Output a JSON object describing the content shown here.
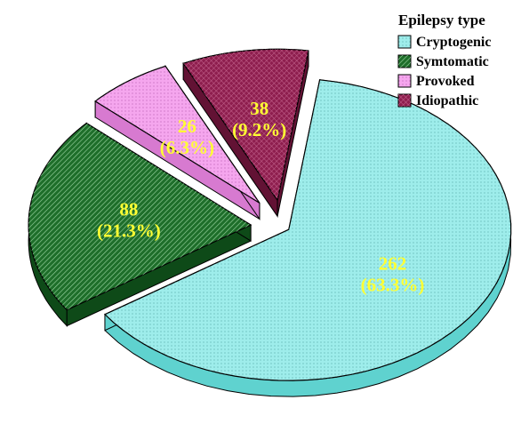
{
  "chart_data": {
    "type": "pie",
    "style": "3d-exploded",
    "legend": {
      "title": "Epilepsy type",
      "placement": "top-right"
    },
    "slices": [
      {
        "name": "Cryptogenic",
        "value": 262,
        "label_count": "262",
        "label_pct": "(63.3%)",
        "color": "#9EEDEB",
        "side_color": "#5FD2CF",
        "pattern": "dots"
      },
      {
        "name": "Symtomatic",
        "value": 88,
        "label_count": "88",
        "label_pct": "(21.3%)",
        "color": "#1E6E2A",
        "side_color": "#0E4A18",
        "pattern": "diagonal"
      },
      {
        "name": "Provoked",
        "value": 26,
        "label_count": "26",
        "label_pct": "(6.3%)",
        "color": "#F5A6EE",
        "side_color": "#D77AD0",
        "pattern": "dots"
      },
      {
        "name": "Idiopathic",
        "value": 38,
        "label_count": "38",
        "label_pct": "(9.2%)",
        "color": "#8E1E4E",
        "side_color": "#621234",
        "pattern": "grid"
      }
    ],
    "label_color": "#FFFF33"
  }
}
